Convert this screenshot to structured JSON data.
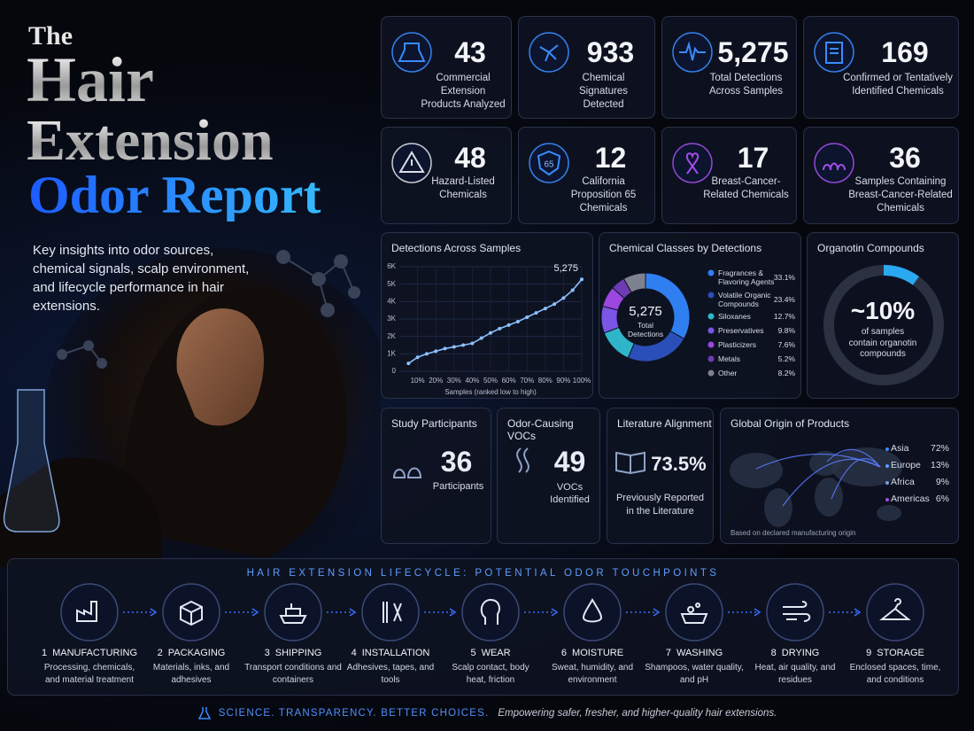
{
  "header": {
    "title_small": "The",
    "title_line1": "Hair",
    "title_line2": "Extension",
    "title_line3": "Odor Report",
    "intro": "Key insights into odor sources, chemical signals, scalp environment, and lifecycle performance in hair extensions."
  },
  "stats": [
    {
      "value": "43",
      "label": "Commercial Extension Products Analyzed"
    },
    {
      "value": "933",
      "label": "Chemical Signatures Detected"
    },
    {
      "value": "5,275",
      "label": "Total Detections Across Samples"
    },
    {
      "value": "169",
      "label": "Confirmed or Tentatively Identified Chemicals"
    },
    {
      "value": "48",
      "label": "Hazard-Listed Chemicals"
    },
    {
      "value": "12",
      "label": "California Proposition 65 Chemicals",
      "icon_text": "65"
    },
    {
      "value": "17",
      "label": "Breast-Cancer-Related Chemicals"
    },
    {
      "value": "36",
      "label": "Samples Containing Breast-Cancer-Related Chemicals"
    }
  ],
  "chart_data": [
    {
      "type": "line",
      "title": "Detections Across Samples",
      "x_label": "Samples (ranked low to high)",
      "x": [
        5,
        10,
        15,
        20,
        25,
        30,
        35,
        40,
        45,
        50,
        55,
        60,
        65,
        70,
        75,
        80,
        85,
        90,
        95,
        100
      ],
      "series": [
        {
          "color": "#8cc2ff",
          "values": [
            450,
            800,
            1000,
            1150,
            1300,
            1400,
            1500,
            1600,
            1900,
            2200,
            2450,
            2650,
            2850,
            3100,
            3350,
            3600,
            3850,
            4200,
            4650,
            5275
          ]
        }
      ],
      "xlim": [
        0,
        100
      ],
      "xticks": [
        {
          "value": 10,
          "label": "10%"
        },
        {
          "value": 20,
          "label": "20%"
        },
        {
          "value": 30,
          "label": "30%"
        },
        {
          "value": 40,
          "label": "40%"
        },
        {
          "value": 50,
          "label": "50%"
        },
        {
          "value": 60,
          "label": "60%"
        },
        {
          "value": 70,
          "label": "70%"
        },
        {
          "value": 80,
          "label": "80%"
        },
        {
          "value": 90,
          "label": "90%"
        },
        {
          "value": 100,
          "label": "100%"
        }
      ],
      "ylim": [
        0,
        6000
      ],
      "yticks": [
        0,
        {
          "value": 1000,
          "label": "1K"
        },
        {
          "value": 2000,
          "label": "2K"
        },
        {
          "value": 3000,
          "label": "3K"
        },
        {
          "value": 4000,
          "label": "4K"
        },
        {
          "value": 5000,
          "label": "5K"
        },
        {
          "value": 6000,
          "label": "6K"
        }
      ],
      "grid": true,
      "annotation": "5,275"
    },
    {
      "type": "donut",
      "title": "Chemical Classes by Detections",
      "center_value": "5,275",
      "center_label": "Total Detections",
      "categories": [
        "Fragrances & Flavoring Agents",
        "Volatile Organic Compounds",
        "Siloxanes",
        "Preservatives",
        "Plasticizers",
        "Metals",
        "Other"
      ],
      "values": [
        33.1,
        23.4,
        12.7,
        9.8,
        7.6,
        5.2,
        8.2
      ],
      "value_labels": [
        "33.1%",
        "23.4%",
        "12.7%",
        "9.8%",
        "7.6%",
        "5.2%",
        "8.2%"
      ],
      "colors": [
        "#2f7ff0",
        "#2a4fb8",
        "#2fb5c9",
        "#7a55e6",
        "#9b47e0",
        "#6d3bb3",
        "#7d8190"
      ]
    }
  ],
  "organotin": {
    "title": "Organotin Compounds",
    "value": 10,
    "value_label": "~10%",
    "caption": "of samples contain organotin compounds",
    "color": "#2aa8f0"
  },
  "participants": {
    "title": "Study Participants",
    "value": "36",
    "label": "Participants"
  },
  "vocs": {
    "title": "Odor-Causing VOCs",
    "value": "49",
    "label": "VOCs Identified"
  },
  "literature": {
    "title": "Literature Alignment",
    "value": "73.5%",
    "label": "Previously Reported in the Literature"
  },
  "origin": {
    "title": "Global Origin of Products",
    "regions": [
      {
        "name": "Asia",
        "share": "72%"
      },
      {
        "name": "Europe",
        "share": "13%"
      },
      {
        "name": "Africa",
        "share": "9%"
      },
      {
        "name": "Americas",
        "share": "6%"
      }
    ],
    "note": "Based on declared manufacturing origin"
  },
  "lifecycle": {
    "title": "HAIR EXTENSION LIFECYCLE: POTENTIAL ODOR TOUCHPOINTS",
    "steps": [
      {
        "number": "1",
        "name": "MANUFACTURING",
        "desc": "Processing, chemicals, and material treatment"
      },
      {
        "number": "2",
        "name": "PACKAGING",
        "desc": "Materials, inks, and adhesives"
      },
      {
        "number": "3",
        "name": "SHIPPING",
        "desc": "Transport conditions and containers"
      },
      {
        "number": "4",
        "name": "INSTALLATION",
        "desc": "Adhesives, tapes, and tools"
      },
      {
        "number": "5",
        "name": "WEAR",
        "desc": "Scalp contact, body heat, friction"
      },
      {
        "number": "6",
        "name": "MOISTURE",
        "desc": "Sweat, humidity, and environment"
      },
      {
        "number": "7",
        "name": "WASHING",
        "desc": "Shampoos, water quality, and pH"
      },
      {
        "number": "8",
        "name": "DRYING",
        "desc": "Heat, air quality, and residues"
      },
      {
        "number": "9",
        "name": "STORAGE",
        "desc": "Enclosed spaces, time, and conditions"
      }
    ]
  },
  "footer": {
    "tagline": "SCIENCE. TRANSPARENCY. BETTER CHOICES.",
    "text": "Empowering safer, fresher, and higher-quality hair extensions."
  }
}
